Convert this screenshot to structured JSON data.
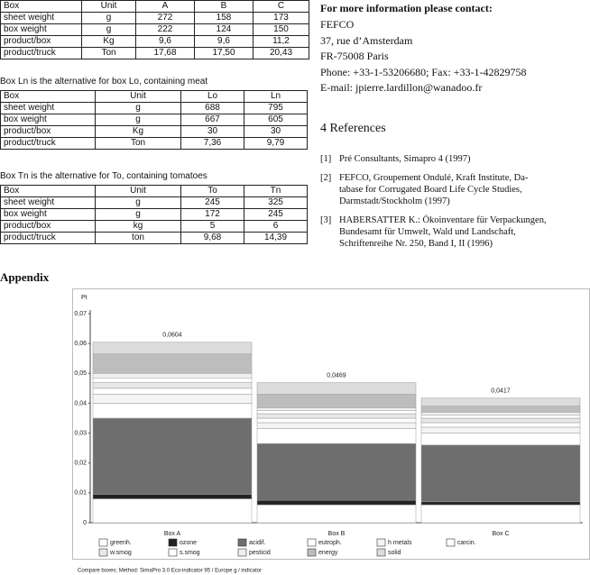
{
  "tables": [
    {
      "header": [
        "Box",
        "Unit",
        "A",
        "B",
        "C"
      ],
      "rows": [
        [
          "sheet weight",
          "g",
          "272",
          "158",
          "173"
        ],
        [
          "box weight",
          "g",
          "222",
          "124",
          "150"
        ],
        [
          "product/box",
          "Kg",
          "9,6",
          "9,6",
          "11,2"
        ],
        [
          "product/truck",
          "Ton",
          "17,68",
          "17,50",
          "20,43"
        ]
      ]
    },
    {
      "caption": "Box Ln is the alternative for box Lo, containing meat",
      "header": [
        "Box",
        "Unit",
        "Lo",
        "Ln"
      ],
      "rows": [
        [
          "sheet weight",
          "g",
          "688",
          "795"
        ],
        [
          "box weight",
          "g",
          "667",
          "605"
        ],
        [
          "product/box",
          "Kg",
          "30",
          "30"
        ],
        [
          "product/truck",
          "Ton",
          "7,36",
          "9,79"
        ]
      ]
    },
    {
      "caption": "Box Tn is the alternative for To, containing tomatoes",
      "header": [
        "Box",
        "Unit",
        "To",
        "Tn"
      ],
      "rows": [
        [
          "sheet weight",
          "g",
          "245",
          "325"
        ],
        [
          "box weight",
          "g",
          "172",
          "245"
        ],
        [
          "product/box",
          "kg",
          "5",
          "6"
        ],
        [
          "product/truck",
          "ton",
          "9,68",
          "14,39"
        ]
      ]
    }
  ],
  "contact": {
    "heading": "For more information please contact:",
    "lines": [
      "FEFCO",
      "37, rue d’Amsterdam",
      "FR-75008 Paris",
      "Phone: +33-1-53206680; Fax: +33-1-42829758",
      "E-mail: jpierre.lardillon@wanadoo.fr"
    ]
  },
  "references": {
    "heading": "4   References",
    "items": [
      {
        "number": "[1]",
        "lines": [
          "Pré Consultants, Simapro 4 (1997)"
        ]
      },
      {
        "number": "[2]",
        "lines": [
          "FEFCO, Groupement Ondulé, Kraft Institute, Da-",
          "tabase for Corrugated Board Life Cycle Studies,",
          "Darmstadt/Stockholm (1997)"
        ]
      },
      {
        "number": "[3]",
        "lines": [
          "HABERSATTER K.: Ökoinventare für Verpackungen,",
          "Bundesamt für Umwelt, Wald und Landschaft,",
          "Schriftenreihe Nr. 250, Band I, II (1996)"
        ]
      }
    ]
  },
  "appendix_heading": "Appendix",
  "chart_data": {
    "type": "stacked_bar",
    "y_label": "Pt",
    "categories": [
      "Box A",
      "Box B",
      "Box C"
    ],
    "ylim": [
      0,
      0.07
    ],
    "yticks": [
      0,
      {
        "value": 0.01,
        "label": "0,01"
      },
      {
        "value": 0.02,
        "label": "0,02"
      },
      {
        "value": 0.03,
        "label": "0,03"
      },
      {
        "value": 0.04,
        "label": "0,04"
      },
      {
        "value": 0.05,
        "label": "0,05"
      },
      {
        "value": 0.06,
        "label": "0,06"
      },
      {
        "value": 0.07,
        "label": "0,07"
      }
    ],
    "series": [
      {
        "name": "greenh.",
        "color": "#ffffff",
        "values": [
          0.008,
          0.006,
          0.006
        ]
      },
      {
        "name": "ozone",
        "color": "#222222",
        "values": [
          0.0015,
          0.0015,
          0.001
        ]
      },
      {
        "name": "acidif.",
        "color": "#6e6e6e",
        "values": [
          0.0255,
          0.019,
          0.019
        ]
      },
      {
        "name": "eutroph.",
        "color": "#ffffff",
        "values": [
          0.005,
          0.005,
          0.004
        ]
      },
      {
        "name": "h metals",
        "color": "#f4f4f4",
        "values": [
          0.003,
          0.002,
          0.002
        ]
      },
      {
        "name": "carcin.",
        "color": "#ffffff",
        "values": [
          0.002,
          0.0015,
          0.0015
        ]
      },
      {
        "name": "w.smog",
        "color": "#e8e8e8",
        "values": [
          0.002,
          0.0015,
          0.0015
        ]
      },
      {
        "name": "s.smog",
        "color": "#ffffff",
        "values": [
          0.0015,
          0.001,
          0.001
        ]
      },
      {
        "name": "pesticid",
        "color": "#f0f0f0",
        "values": [
          0.0015,
          0.001,
          0.001
        ]
      },
      {
        "name": "energy",
        "color": "#bdbdbd",
        "values": [
          0.0065,
          0.0045,
          0.002
        ]
      },
      {
        "name": "solid",
        "color": "#dcdcdc",
        "values": [
          0.0039,
          0.0039,
          0.0027
        ]
      }
    ],
    "totals": {
      "values": [
        0.0604,
        0.0469,
        0.0417
      ],
      "value_labels": [
        "0,0604",
        "0,0469",
        "0,0417"
      ]
    },
    "footnote": "Compare boxes;  Method: SimaPro 3.0 Eco-indicator 95 / Europe g / indicator"
  }
}
